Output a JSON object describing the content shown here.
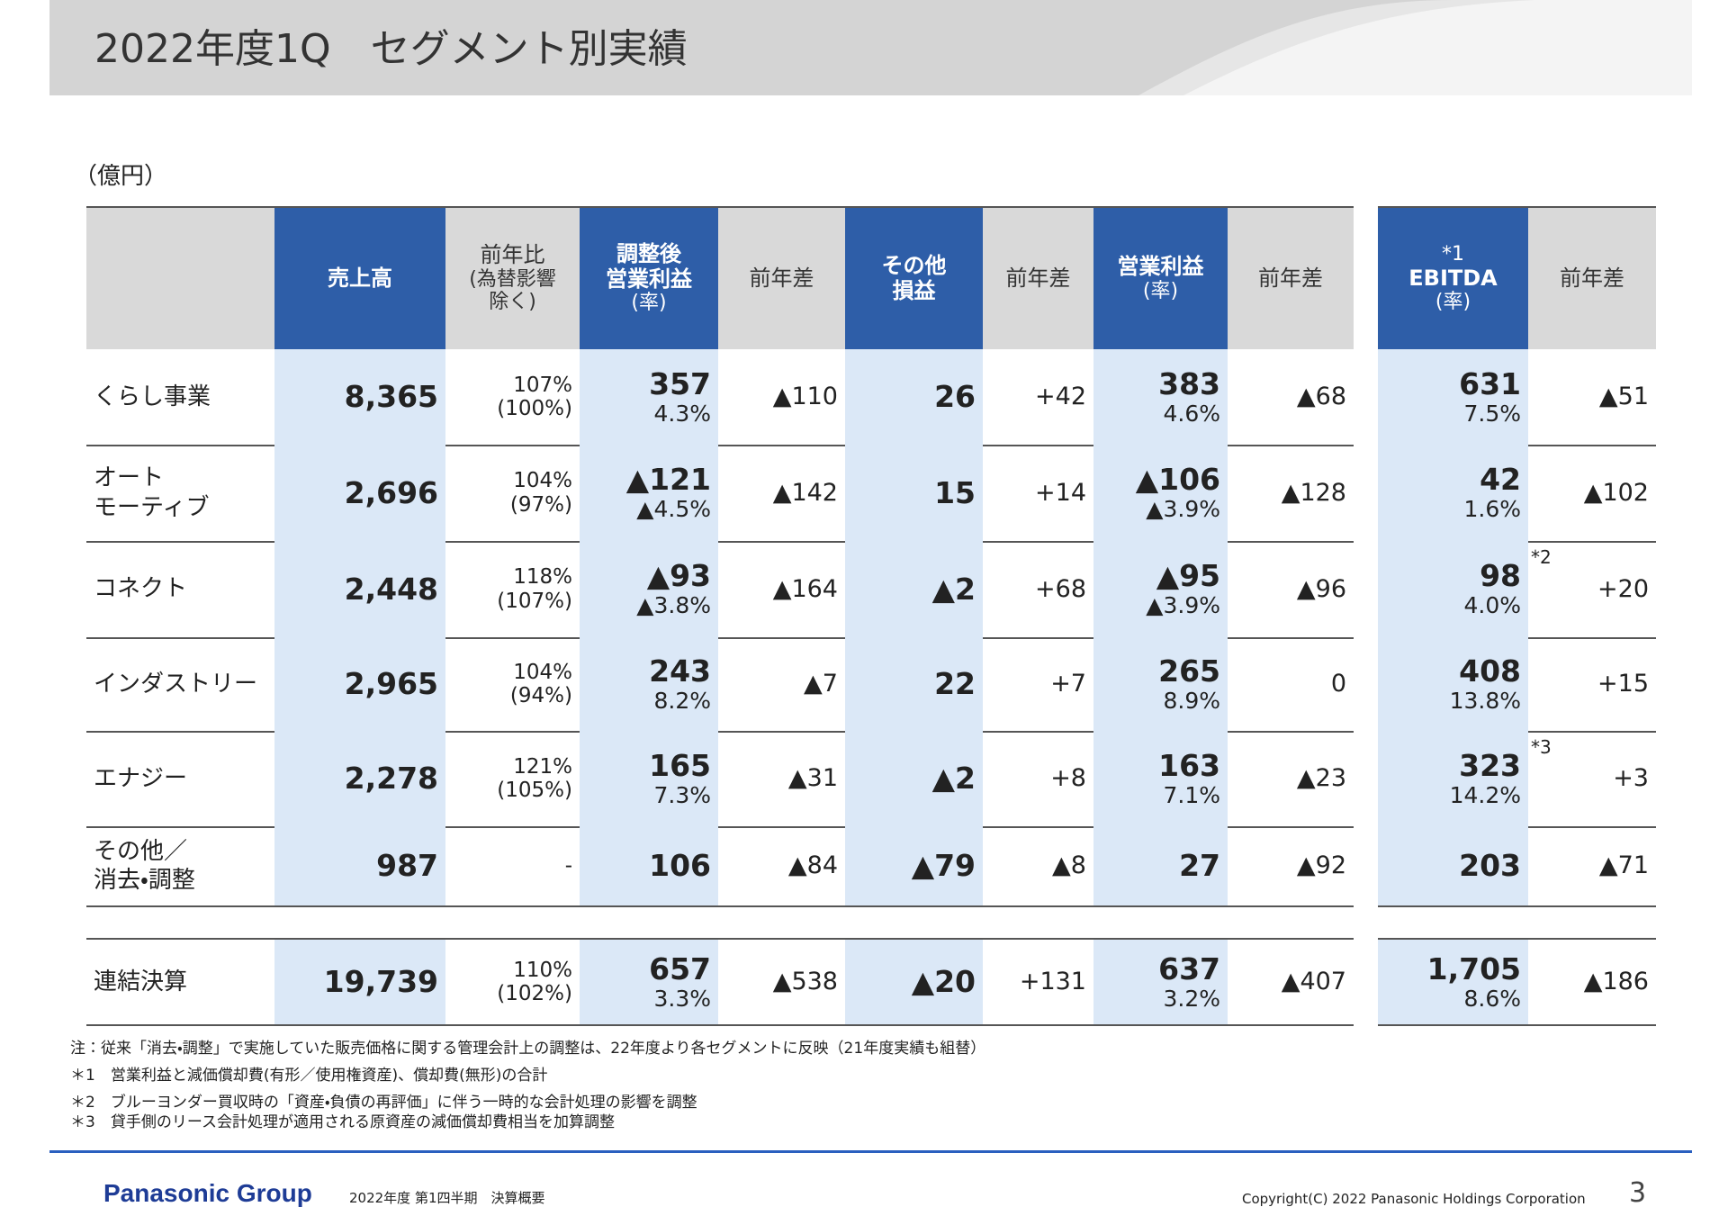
{
  "header": {
    "title": "2022年度1Q　セグメント別実績"
  },
  "unit": "（億円）",
  "table": {
    "columns": [
      [
        "売上高"
      ],
      [
        "前年比",
        "(為替影響",
        "除く)"
      ],
      [
        "調整後",
        "営業利益",
        "(率)"
      ],
      [
        "前年差"
      ],
      [
        "その他",
        "損益"
      ],
      [
        "前年差"
      ],
      [
        "営業利益",
        "(率)"
      ],
      [
        "前年差"
      ],
      [
        "*1",
        "EBITDA",
        "(率)"
      ],
      [
        "前年差"
      ]
    ],
    "rows": [
      {
        "label": [
          "くらし事業"
        ],
        "cells": [
          [
            "8,365"
          ],
          [
            "107%",
            "(100%)"
          ],
          [
            "357",
            "4.3%"
          ],
          [
            "▲110"
          ],
          [
            "26"
          ],
          [
            "+42"
          ],
          [
            "383",
            "4.6%"
          ],
          [
            "▲68"
          ],
          [
            "631",
            "7.5%"
          ],
          [
            "▲51"
          ]
        ]
      },
      {
        "label": [
          "オート",
          "モーティブ"
        ],
        "cells": [
          [
            "2,696"
          ],
          [
            "104%",
            "(97%)"
          ],
          [
            "▲121",
            "▲4.5%"
          ],
          [
            "▲142"
          ],
          [
            "15"
          ],
          [
            "+14"
          ],
          [
            "▲106",
            "▲3.9%"
          ],
          [
            "▲128"
          ],
          [
            "42",
            "1.6%"
          ],
          [
            "▲102"
          ]
        ]
      },
      {
        "label": [
          "コネクト"
        ],
        "cells": [
          [
            "2,448"
          ],
          [
            "118%",
            "(107%)"
          ],
          [
            "▲93",
            "▲3.8%"
          ],
          [
            "▲164"
          ],
          [
            "▲2"
          ],
          [
            "+68"
          ],
          [
            "▲95",
            "▲3.9%"
          ],
          [
            "▲96"
          ],
          [
            "98",
            "4.0%"
          ],
          [
            "+20"
          ]
        ],
        "ebitda_note": "*2"
      },
      {
        "label": [
          "インダストリー"
        ],
        "cells": [
          [
            "2,965"
          ],
          [
            "104%",
            "(94%)"
          ],
          [
            "243",
            "8.2%"
          ],
          [
            "▲7"
          ],
          [
            "22"
          ],
          [
            "+7"
          ],
          [
            "265",
            "8.9%"
          ],
          [
            "0"
          ],
          [
            "408",
            "13.8%"
          ],
          [
            "+15"
          ]
        ]
      },
      {
        "label": [
          "エナジー"
        ],
        "cells": [
          [
            "2,278"
          ],
          [
            "121%",
            "(105%)"
          ],
          [
            "165",
            "7.3%"
          ],
          [
            "▲31"
          ],
          [
            "▲2"
          ],
          [
            "+8"
          ],
          [
            "163",
            "7.1%"
          ],
          [
            "▲23"
          ],
          [
            "323",
            "14.2%"
          ],
          [
            "+3"
          ]
        ],
        "ebitda_note": "*3"
      },
      {
        "label": [
          "その他／",
          "消去・調整"
        ],
        "cells": [
          [
            "987"
          ],
          [
            "-"
          ],
          [
            "106"
          ],
          [
            "▲84"
          ],
          [
            "▲79"
          ],
          [
            "▲8"
          ],
          [
            "27"
          ],
          [
            "▲92"
          ],
          [
            "203"
          ],
          [
            "▲71"
          ]
        ]
      }
    ],
    "total": {
      "label": [
        "連結決算"
      ],
      "cells": [
        [
          "19,739"
        ],
        [
          "110%",
          "(102%)"
        ],
        [
          "657",
          "3.3%"
        ],
        [
          "▲538"
        ],
        [
          "▲20"
        ],
        [
          "+131"
        ],
        [
          "637",
          "3.2%"
        ],
        [
          "▲407"
        ],
        [
          "1,705",
          "8.6%"
        ],
        [
          "▲186"
        ]
      ]
    }
  },
  "notes": [
    "注：従来「消去・調整」で実施していた販売価格に関する管理会計上の調整は、22年度より各セグメントに反映（21年度実績も組替）",
    "＊1　営業利益と減価償却費(有形／使用権資産)、償却費(無形)の合計",
    "＊2　ブルーヨンダー買収時の「資産・負債の再評価」に伴う一時的な会計処理の影響を調整",
    "＊3　貸手側のリース会計処理が適用される原資産の減価償却費相当を加算調整"
  ],
  "footer": {
    "brand": "Panasonic Group",
    "subtitle": "2022年度 第1四半期　決算概要",
    "copyright": "Copyright(C) 2022 Panasonic Holdings Corporation",
    "page": "3"
  }
}
